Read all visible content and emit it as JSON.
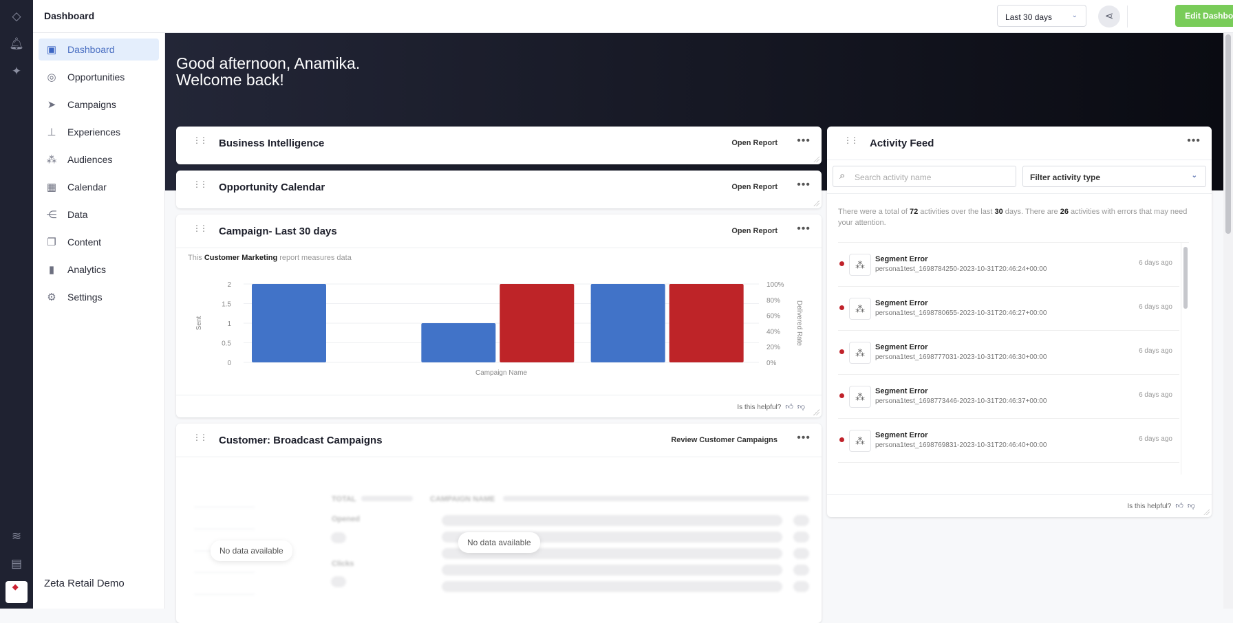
{
  "header": {
    "title": "Dashboard",
    "date_range": "Last 30 days",
    "edit_label": "Edit Dashboard"
  },
  "rail": {
    "icons": [
      "zeta-diamond-icon",
      "bell-icon",
      "sparkle-icon",
      "signal-icon",
      "book-icon"
    ],
    "logo": "ZETA"
  },
  "sidebar": {
    "items": [
      {
        "label": "Dashboard",
        "icon": "layout-icon",
        "active": true
      },
      {
        "label": "Opportunities",
        "icon": "target-icon"
      },
      {
        "label": "Campaigns",
        "icon": "paper-plane-icon"
      },
      {
        "label": "Experiences",
        "icon": "hierarchy-icon"
      },
      {
        "label": "Audiences",
        "icon": "audience-icon"
      },
      {
        "label": "Calendar",
        "icon": "calendar-icon"
      },
      {
        "label": "Data",
        "icon": "data-flow-icon"
      },
      {
        "label": "Content",
        "icon": "content-icon"
      },
      {
        "label": "Analytics",
        "icon": "bar-chart-icon"
      },
      {
        "label": "Settings",
        "icon": "gear-icon"
      }
    ],
    "org": "Zeta Retail Demo"
  },
  "hero": {
    "line1": "Good afternoon, Anamika.",
    "line2": "Welcome back!"
  },
  "cards": {
    "bi": {
      "title": "Business Intelligence",
      "link": "Open Report"
    },
    "calendar": {
      "title": "Opportunity Calendar",
      "link": "Open Report"
    },
    "campaign": {
      "title": "Campaign- Last 30 days",
      "link": "Open Report",
      "sub_pre": "This",
      "sub_bold": "Customer Marketing",
      "sub_post": "report measures data",
      "helpful": "Is this helpful?"
    },
    "broadcast": {
      "title": "Customer: Broadcast Campaigns",
      "link": "Review Customer Campaigns",
      "no_data": "No data available",
      "total": "TOTAL",
      "campaign_name": "CAMPAIGN NAME",
      "opened": "Opened",
      "clicks": "Clicks"
    }
  },
  "chart_data": {
    "type": "bar",
    "title": "",
    "xlabel": "Campaign Name",
    "ylabel": "Sent",
    "y2label": "Delivered Rate",
    "categories": [
      "",
      "",
      ""
    ],
    "series": [
      {
        "axis": "left",
        "color": "#4173c8",
        "values": [
          2,
          1,
          2
        ]
      },
      {
        "axis": "right",
        "color": "#be2428",
        "values": [
          0,
          100,
          100
        ]
      }
    ],
    "ylim": [
      0,
      2
    ],
    "y2lim": [
      0,
      100
    ],
    "yticks": [
      "0",
      "0.5",
      "1",
      "1.5",
      "2"
    ],
    "y2ticks": [
      "0%",
      "20%",
      "40%",
      "60%",
      "80%",
      "100%"
    ],
    "grid": true
  },
  "activity": {
    "title": "Activity Feed",
    "search_placeholder": "Search activity name",
    "filter": "Filter activity type",
    "summary": {
      "p1": "There were a total of",
      "total": "72",
      "p2": "activities over the last",
      "days": "30",
      "p3": "days. There are",
      "errors": "26",
      "p4": "activities with errors that may need your attention."
    },
    "items": [
      {
        "name": "Segment Error",
        "desc": "persona1test_1698784250-2023-10-31T20:46:24+00:00",
        "time": "6 days ago"
      },
      {
        "name": "Segment Error",
        "desc": "persona1test_1698780655-2023-10-31T20:46:27+00:00",
        "time": "6 days ago"
      },
      {
        "name": "Segment Error",
        "desc": "persona1test_1698777031-2023-10-31T20:46:30+00:00",
        "time": "6 days ago"
      },
      {
        "name": "Segment Error",
        "desc": "persona1test_1698773446-2023-10-31T20:46:37+00:00",
        "time": "6 days ago"
      },
      {
        "name": "Segment Error",
        "desc": "persona1test_1698769831-2023-10-31T20:46:40+00:00",
        "time": "6 days ago"
      }
    ],
    "helpful": "Is this helpful?"
  },
  "colors": {
    "accent": "#79cc59",
    "active_nav": "#4a6fc2",
    "error": "#c0222a"
  }
}
